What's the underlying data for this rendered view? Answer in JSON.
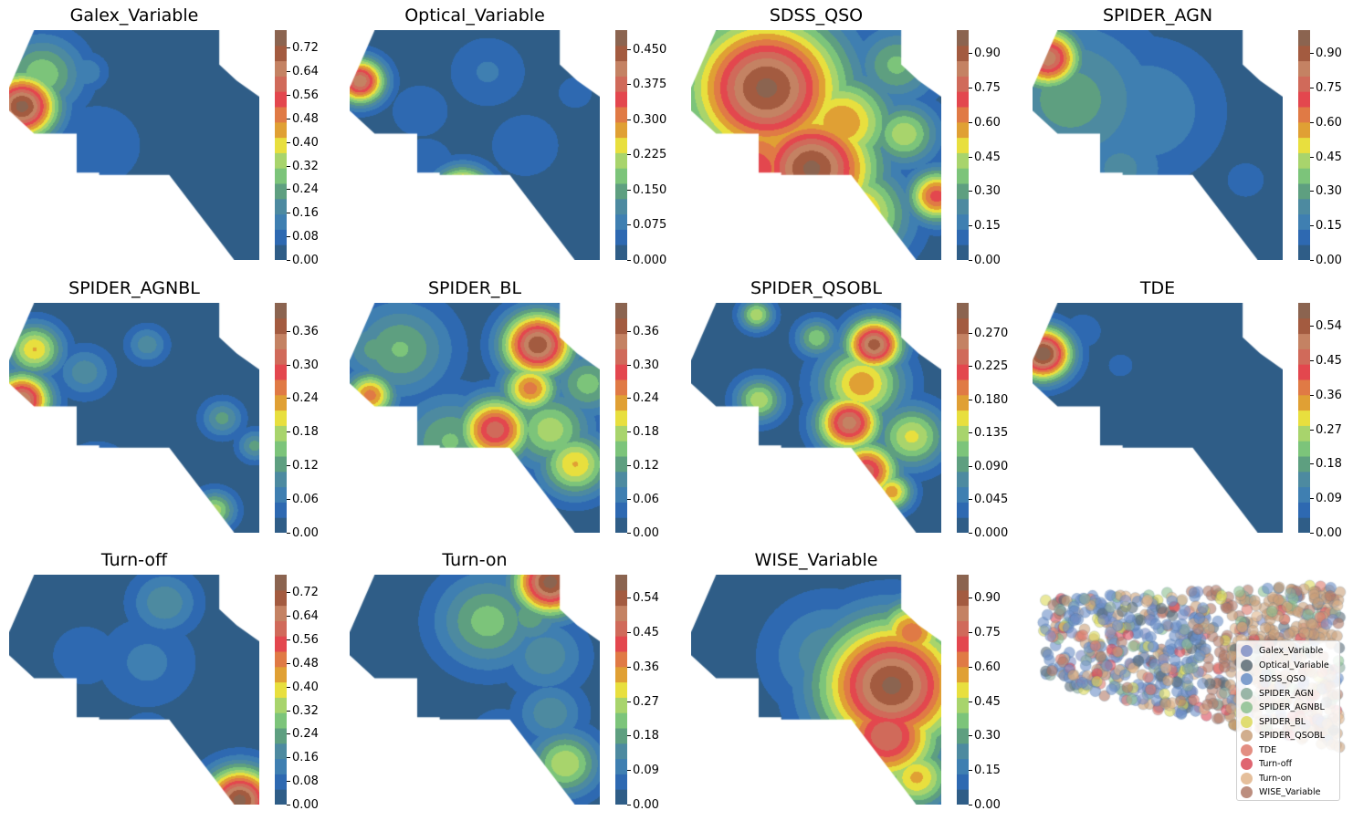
{
  "palette": [
    "#2f5d87",
    "#2e69b1",
    "#3f7fb1",
    "#4d8aa0",
    "#5e9f80",
    "#7cc47a",
    "#a8d46c",
    "#e8df3e",
    "#e0a034",
    "#e07a45",
    "#e3474e",
    "#d06a5a",
    "#c48263",
    "#a35b40",
    "#8b6450"
  ],
  "chart_data": [
    {
      "type": "heatmap",
      "title": "Galex_Variable",
      "ticks": [
        "0.00",
        "0.08",
        "0.16",
        "0.24",
        "0.32",
        "0.40",
        "0.48",
        "0.56",
        "0.64",
        "0.72"
      ],
      "vmax": 0.78,
      "hotspots": [
        [
          0.05,
          0.33,
          0.75,
          0.1
        ],
        [
          0.13,
          0.19,
          0.3,
          0.12
        ],
        [
          0.31,
          0.18,
          0.15,
          0.06
        ],
        [
          0.35,
          0.5,
          0.1,
          0.15
        ],
        [
          0.08,
          0.2,
          0.15,
          0.12
        ]
      ]
    },
    {
      "type": "heatmap",
      "title": "Optical_Variable",
      "ticks": [
        "0.000",
        "0.075",
        "0.150",
        "0.225",
        "0.300",
        "0.375",
        "0.450"
      ],
      "vmax": 0.49,
      "hotspots": [
        [
          0.45,
          0.72,
          0.45,
          0.08
        ],
        [
          0.04,
          0.22,
          0.42,
          0.07
        ],
        [
          0.55,
          0.18,
          0.07,
          0.12
        ],
        [
          0.9,
          0.27,
          0.06,
          0.06
        ],
        [
          0.28,
          0.35,
          0.06,
          0.1
        ],
        [
          0.7,
          0.5,
          0.06,
          0.12
        ],
        [
          0.3,
          0.58,
          0.05,
          0.12
        ]
      ]
    },
    {
      "type": "heatmap",
      "title": "SDSS_QSO",
      "ticks": [
        "0.00",
        "0.15",
        "0.30",
        "0.45",
        "0.60",
        "0.75",
        "0.90"
      ],
      "vmax": 1.0,
      "hotspots": [
        [
          0.3,
          0.25,
          0.95,
          0.22
        ],
        [
          0.48,
          0.6,
          0.95,
          0.18
        ],
        [
          0.25,
          0.6,
          0.7,
          0.22
        ],
        [
          0.6,
          0.4,
          0.6,
          0.15
        ],
        [
          0.85,
          0.45,
          0.45,
          0.1
        ],
        [
          0.98,
          0.72,
          0.7,
          0.08
        ],
        [
          0.82,
          0.15,
          0.35,
          0.12
        ],
        [
          0.65,
          0.8,
          0.6,
          0.15
        ]
      ]
    },
    {
      "type": "heatmap",
      "title": "SPIDER_AGN",
      "ticks": [
        "0.00",
        "0.15",
        "0.30",
        "0.45",
        "0.60",
        "0.75",
        "0.90"
      ],
      "vmax": 1.0,
      "hotspots": [
        [
          0.06,
          0.12,
          0.85,
          0.09
        ],
        [
          0.15,
          0.3,
          0.3,
          0.25
        ],
        [
          0.45,
          0.35,
          0.2,
          0.22
        ],
        [
          0.35,
          0.6,
          0.22,
          0.15
        ],
        [
          0.85,
          0.65,
          0.08,
          0.12
        ]
      ]
    },
    {
      "type": "heatmap",
      "title": "SPIDER_AGNBL",
      "ticks": [
        "0.00",
        "0.06",
        "0.12",
        "0.18",
        "0.24",
        "0.30",
        "0.36"
      ],
      "vmax": 0.41,
      "hotspots": [
        [
          0.05,
          0.42,
          0.36,
          0.08
        ],
        [
          0.1,
          0.2,
          0.22,
          0.08
        ],
        [
          0.35,
          0.75,
          0.16,
          0.08
        ],
        [
          0.85,
          0.5,
          0.12,
          0.06
        ],
        [
          0.82,
          0.9,
          0.18,
          0.06
        ],
        [
          0.3,
          0.3,
          0.1,
          0.08
        ],
        [
          0.55,
          0.18,
          0.1,
          0.06
        ],
        [
          0.98,
          0.62,
          0.12,
          0.05
        ]
      ]
    },
    {
      "type": "heatmap",
      "title": "SPIDER_BL",
      "ticks": [
        "0.00",
        "0.06",
        "0.12",
        "0.18",
        "0.24",
        "0.30",
        "0.36"
      ],
      "vmax": 0.41,
      "hotspots": [
        [
          0.75,
          0.18,
          0.38,
          0.1
        ],
        [
          0.58,
          0.55,
          0.32,
          0.1
        ],
        [
          0.72,
          0.37,
          0.26,
          0.08
        ],
        [
          0.08,
          0.4,
          0.26,
          0.07
        ],
        [
          0.9,
          0.7,
          0.22,
          0.1
        ],
        [
          0.66,
          0.88,
          0.22,
          0.08
        ],
        [
          0.2,
          0.2,
          0.14,
          0.15
        ],
        [
          0.8,
          0.55,
          0.18,
          0.12
        ],
        [
          0.4,
          0.6,
          0.14,
          0.15
        ],
        [
          0.95,
          0.35,
          0.15,
          0.1
        ],
        [
          0.1,
          0.2,
          0.12,
          0.1
        ]
      ]
    },
    {
      "type": "heatmap",
      "title": "SPIDER_QSOBL",
      "ticks": [
        "0.000",
        "0.045",
        "0.090",
        "0.135",
        "0.180",
        "0.225",
        "0.270"
      ],
      "vmax": 0.31,
      "hotspots": [
        [
          0.73,
          0.18,
          0.28,
          0.08
        ],
        [
          0.63,
          0.52,
          0.26,
          0.09
        ],
        [
          0.7,
          0.73,
          0.24,
          0.09
        ],
        [
          0.68,
          0.35,
          0.18,
          0.12
        ],
        [
          0.27,
          0.42,
          0.14,
          0.07
        ],
        [
          0.88,
          0.58,
          0.15,
          0.1
        ],
        [
          0.26,
          0.05,
          0.14,
          0.05
        ],
        [
          0.5,
          0.15,
          0.12,
          0.06
        ],
        [
          0.8,
          0.82,
          0.18,
          0.06
        ]
      ]
    },
    {
      "type": "heatmap",
      "title": "TDE",
      "ticks": [
        "0.00",
        "0.09",
        "0.18",
        "0.27",
        "0.36",
        "0.45",
        "0.54"
      ],
      "vmax": 0.6,
      "hotspots": [
        [
          0.04,
          0.22,
          0.6,
          0.08
        ],
        [
          0.2,
          0.12,
          0.08,
          0.06
        ],
        [
          0.35,
          0.27,
          0.08,
          0.04
        ]
      ]
    },
    {
      "type": "heatmap",
      "title": "Turn-off",
      "ticks": [
        "0.00",
        "0.08",
        "0.16",
        "0.24",
        "0.32",
        "0.40",
        "0.48",
        "0.56",
        "0.64",
        "0.72"
      ],
      "vmax": 0.78,
      "hotspots": [
        [
          0.92,
          0.98,
          0.75,
          0.1
        ],
        [
          0.62,
          0.12,
          0.2,
          0.1
        ],
        [
          0.55,
          0.38,
          0.12,
          0.15
        ],
        [
          0.55,
          0.7,
          0.12,
          0.08
        ],
        [
          0.3,
          0.35,
          0.09,
          0.12
        ]
      ]
    },
    {
      "type": "heatmap",
      "title": "Turn-on",
      "ticks": [
        "0.00",
        "0.09",
        "0.18",
        "0.27",
        "0.36",
        "0.45",
        "0.54"
      ],
      "vmax": 0.6,
      "hotspots": [
        [
          0.8,
          0.03,
          0.58,
          0.1
        ],
        [
          0.86,
          0.82,
          0.28,
          0.1
        ],
        [
          0.55,
          0.2,
          0.22,
          0.15
        ],
        [
          0.78,
          0.35,
          0.15,
          0.12
        ],
        [
          0.8,
          0.6,
          0.15,
          0.1
        ],
        [
          0.72,
          0.18,
          0.18,
          0.1
        ],
        [
          0.6,
          0.7,
          0.12,
          0.08
        ]
      ]
    },
    {
      "type": "heatmap",
      "title": "WISE_Variable",
      "ticks": [
        "0.00",
        "0.15",
        "0.30",
        "0.45",
        "0.60",
        "0.75",
        "0.90"
      ],
      "vmax": 1.0,
      "hotspots": [
        [
          0.8,
          0.48,
          0.95,
          0.2
        ],
        [
          0.78,
          0.7,
          0.8,
          0.15
        ],
        [
          0.88,
          0.25,
          0.65,
          0.1
        ],
        [
          0.9,
          0.88,
          0.55,
          0.1
        ],
        [
          0.55,
          0.35,
          0.25,
          0.18
        ]
      ]
    },
    {
      "type": "scatter",
      "legend": [
        "Galex_Variable",
        "Optical_Variable",
        "SDSS_QSO",
        "SPIDER_AGN",
        "SPIDER_AGNBL",
        "SPIDER_BL",
        "SPIDER_QSOBL",
        "TDE",
        "Turn-off",
        "Turn-on",
        "WISE_Variable"
      ],
      "legend_colors": [
        "#7f8ec4",
        "#5a6b76",
        "#6a8ec6",
        "#8aaa9a",
        "#8cc08f",
        "#dcd85a",
        "#c9a07a",
        "#de7a6c",
        "#d94a58",
        "#e0b48a",
        "#b07a68"
      ],
      "legend_position": "lower right"
    }
  ]
}
